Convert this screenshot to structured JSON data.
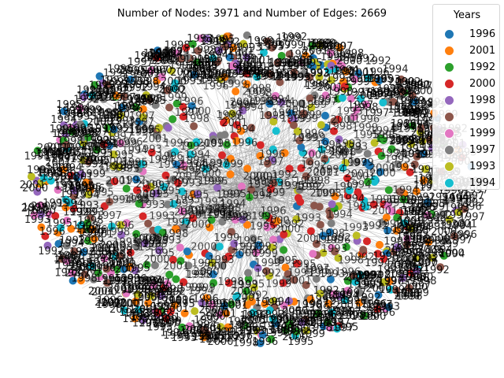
{
  "title": "Number of Nodes: 3971 and Number of Edges: 2669",
  "legend": {
    "title": "Years",
    "entries": [
      {
        "label": "1996",
        "color": "#1f77b4"
      },
      {
        "label": "2001",
        "color": "#ff7f0e"
      },
      {
        "label": "1992",
        "color": "#2ca02c"
      },
      {
        "label": "2000",
        "color": "#d62728"
      },
      {
        "label": "1998",
        "color": "#9467bd"
      },
      {
        "label": "1995",
        "color": "#8c564b"
      },
      {
        "label": "1999",
        "color": "#e377c2"
      },
      {
        "label": "1997",
        "color": "#7f7f7f"
      },
      {
        "label": "1993",
        "color": "#bcbd22"
      },
      {
        "label": "1994",
        "color": "#17becf"
      }
    ]
  },
  "colors": {
    "edge": "#8c8c8c",
    "background": "#ffffff",
    "node_label": "#000000"
  }
}
